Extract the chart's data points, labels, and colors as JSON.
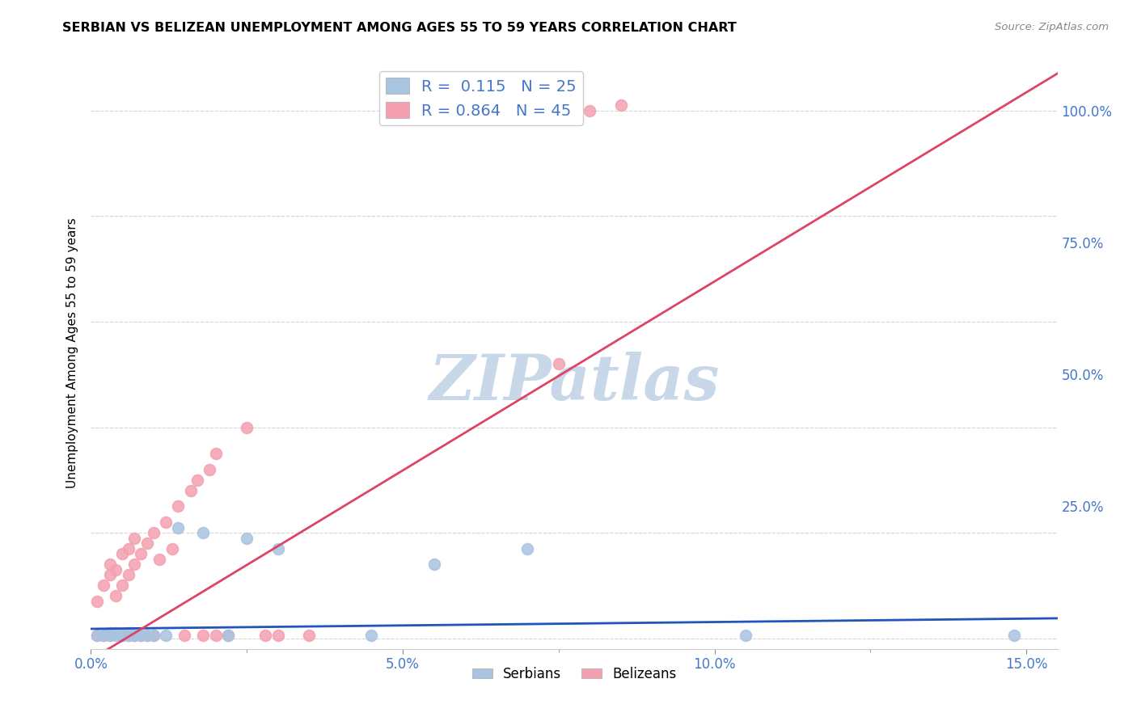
{
  "title": "SERBIAN VS BELIZEAN UNEMPLOYMENT AMONG AGES 55 TO 59 YEARS CORRELATION CHART",
  "source": "Source: ZipAtlas.com",
  "ylabel": "Unemployment Among Ages 55 to 59 years",
  "xlim": [
    0.0,
    0.155
  ],
  "ylim": [
    -0.02,
    1.1
  ],
  "xticks": [
    0.0,
    0.05,
    0.1,
    0.15
  ],
  "xtick_labels": [
    "0.0%",
    "5.0%",
    "10.0%",
    "15.0%"
  ],
  "ytick_labels": [
    "25.0%",
    "50.0%",
    "75.0%",
    "100.0%"
  ],
  "yticks": [
    0.25,
    0.5,
    0.75,
    1.0
  ],
  "serbian_color": "#a8c4e0",
  "belizean_color": "#f4a0b0",
  "serbian_line_color": "#2255bb",
  "belizean_line_color": "#dd4466",
  "serbian_R": 0.115,
  "serbian_N": 25,
  "belizean_R": 0.864,
  "belizean_N": 45,
  "background_color": "#ffffff",
  "watermark": "ZIPatlas",
  "watermark_color": "#c8d8e8",
  "serbian_x": [
    0.001,
    0.002,
    0.003,
    0.003,
    0.004,
    0.004,
    0.005,
    0.005,
    0.006,
    0.006,
    0.007,
    0.008,
    0.009,
    0.01,
    0.012,
    0.014,
    0.018,
    0.022,
    0.025,
    0.03,
    0.045,
    0.055,
    0.07,
    0.105,
    0.148
  ],
  "serbian_y": [
    0.005,
    0.005,
    0.005,
    0.01,
    0.005,
    0.01,
    0.005,
    0.005,
    0.005,
    0.01,
    0.005,
    0.005,
    0.005,
    0.005,
    0.005,
    0.21,
    0.2,
    0.005,
    0.19,
    0.17,
    0.005,
    0.14,
    0.17,
    0.005,
    0.005
  ],
  "belizean_x": [
    0.001,
    0.001,
    0.002,
    0.002,
    0.003,
    0.003,
    0.003,
    0.004,
    0.004,
    0.005,
    0.005,
    0.005,
    0.006,
    0.006,
    0.006,
    0.007,
    0.007,
    0.007,
    0.008,
    0.008,
    0.009,
    0.009,
    0.01,
    0.01,
    0.011,
    0.012,
    0.013,
    0.014,
    0.015,
    0.016,
    0.017,
    0.018,
    0.019,
    0.02,
    0.02,
    0.022,
    0.025,
    0.028,
    0.03,
    0.035,
    0.06,
    0.065,
    0.075,
    0.08,
    0.085
  ],
  "belizean_y": [
    0.005,
    0.07,
    0.005,
    0.1,
    0.005,
    0.12,
    0.14,
    0.08,
    0.13,
    0.005,
    0.1,
    0.16,
    0.005,
    0.12,
    0.17,
    0.005,
    0.14,
    0.19,
    0.005,
    0.16,
    0.005,
    0.18,
    0.005,
    0.2,
    0.15,
    0.22,
    0.17,
    0.25,
    0.005,
    0.28,
    0.3,
    0.005,
    0.32,
    0.005,
    0.35,
    0.005,
    0.4,
    0.005,
    0.005,
    0.005,
    1.0,
    1.01,
    0.52,
    1.0,
    1.01
  ]
}
